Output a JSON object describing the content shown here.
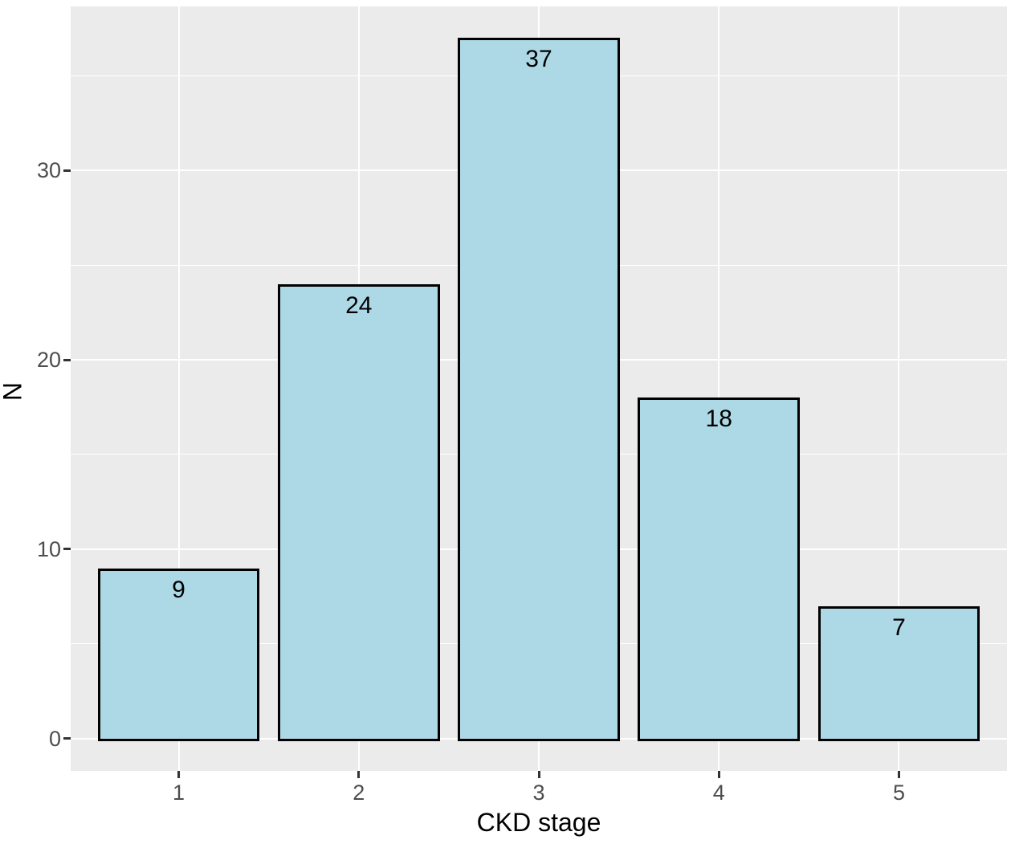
{
  "chart_data": {
    "type": "bar",
    "title": "",
    "categories": [
      "1",
      "2",
      "3",
      "4",
      "5"
    ],
    "values": [
      9,
      24,
      37,
      18,
      7
    ],
    "bar_labels": [
      "9",
      "24",
      "37",
      "18",
      "7"
    ],
    "xlabel": "CKD stage",
    "ylabel": "N",
    "ylim": [
      -1.7,
      38.65
    ],
    "y_major_ticks": [
      0,
      10,
      20,
      30
    ],
    "y_minor_gridlines": [
      5,
      15,
      25,
      35
    ],
    "grid": "on",
    "legend": "none",
    "bar_width_fraction": 0.9,
    "category_edge_expansion": 0.6,
    "colors": {
      "bar_fill": "#ADD8E6",
      "bar_border": "#000000",
      "panel_background": "#EBEBEB",
      "gridline": "#FFFFFF",
      "tick_mark": "#333333",
      "tick_label_text": "#4D4D4D",
      "axis_title_text": "#000000",
      "bar_value_text": "#000000",
      "figure_background": "#FFFFFF"
    }
  }
}
